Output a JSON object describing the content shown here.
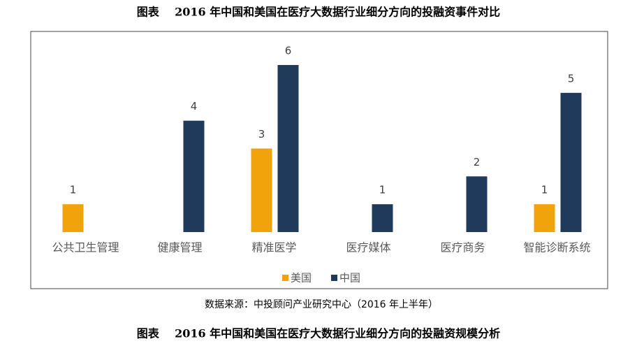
{
  "chart_data": {
    "type": "bar",
    "title": "图表    2016 年中国和美国在医疗大数据行业细分方向的投融资事件对比",
    "categories": [
      "公共卫生管理",
      "健康管理",
      "精准医学",
      "医疗媒体",
      "医疗商务",
      "智能诊断系统"
    ],
    "series": [
      {
        "name": "美国",
        "color": "#f0a30a",
        "values": [
          1,
          null,
          3,
          null,
          null,
          1
        ]
      },
      {
        "name": "中国",
        "color": "#1f3a5a",
        "values": [
          null,
          4,
          6,
          1,
          2,
          5
        ]
      }
    ],
    "ylim": [
      0,
      6
    ],
    "grid": false,
    "legend": "bottom",
    "data_labels": true
  },
  "footer": {
    "source": "数据来源：中投顾问产业研究中心（2016 年上半年）",
    "next_title": "图表    2016 年中国和美国在医疗大数据行业细分方向的投融资规模分析"
  }
}
